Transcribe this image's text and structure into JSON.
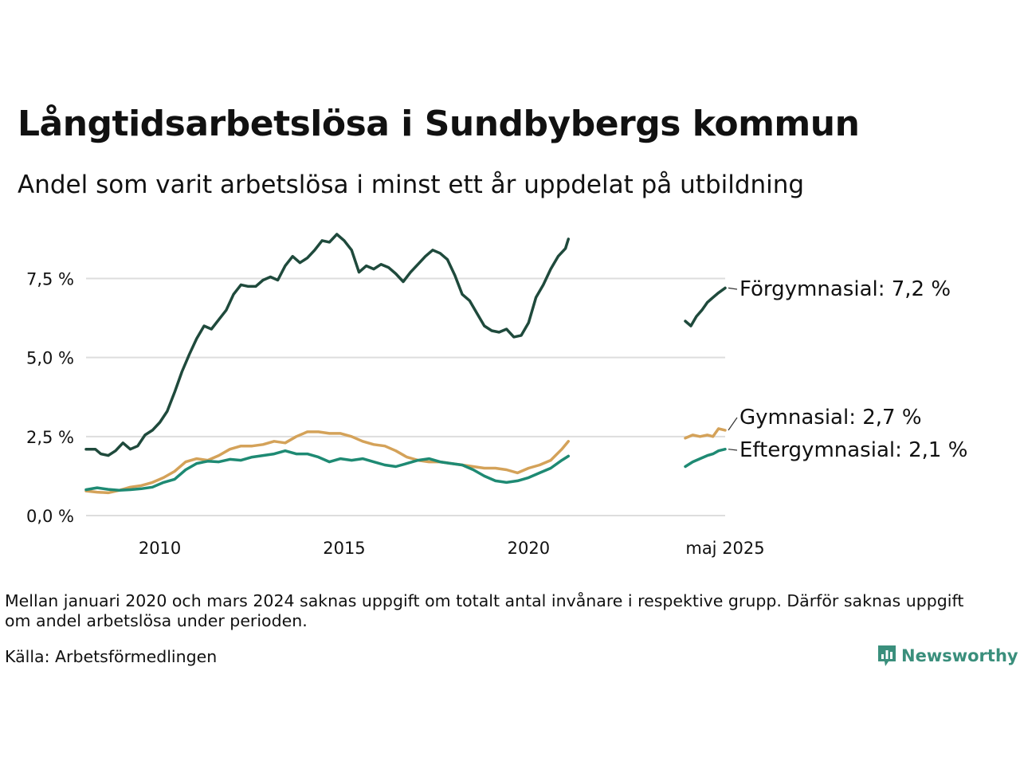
{
  "header": {
    "title": "Långtidsarbetslösa i Sundbybergs kommun",
    "subtitle": "Andel som varit arbetslösa i minst ett år uppdelat på utbildning"
  },
  "footer": {
    "note": "Mellan januari 2020 och mars 2024 saknas uppgift om totalt antal invånare i respektive grupp. Därför saknas uppgift om andel arbetslösa under perioden.",
    "source": "Källa: Arbetsförmedlingen",
    "brand": "Newsworthy"
  },
  "colors": {
    "Förgymnasial": "#1f4a3c",
    "Gymnasial": "#d4a259",
    "Eftergymnasial": "#1e8a73",
    "grid": "#dddddd",
    "brand": "#3a8f7c"
  },
  "icons": {
    "brand_logo": "bar-chart-logo-icon"
  },
  "chart_data": {
    "type": "line",
    "y_ticks": [
      "0,0 %",
      "2,5 %",
      "5,0 %",
      "7,5 %"
    ],
    "y_tick_values": [
      0,
      2.5,
      5,
      7.5
    ],
    "x_ticks": [
      "2010",
      "2015",
      "2020",
      "maj 2025"
    ],
    "x_tick_values": [
      2010.0,
      2015.0,
      2020.0,
      2025.33
    ],
    "xlim": [
      2008.0,
      2025.33
    ],
    "ylim": [
      0,
      9.0
    ],
    "grid": "horizontal",
    "legend": "end-of-line labels",
    "series": [
      {
        "name": "Förgymnasial",
        "end_label": "Förgymnasial: 7,2 %",
        "color": "#1f4a3c",
        "points": [
          [
            2008.0,
            2.1
          ],
          [
            2008.25,
            2.1
          ],
          [
            2008.4,
            1.95
          ],
          [
            2008.6,
            1.9
          ],
          [
            2008.8,
            2.05
          ],
          [
            2009.0,
            2.3
          ],
          [
            2009.2,
            2.1
          ],
          [
            2009.4,
            2.2
          ],
          [
            2009.6,
            2.55
          ],
          [
            2009.8,
            2.7
          ],
          [
            2010.0,
            2.95
          ],
          [
            2010.2,
            3.3
          ],
          [
            2010.4,
            3.9
          ],
          [
            2010.6,
            4.55
          ],
          [
            2010.8,
            5.1
          ],
          [
            2011.0,
            5.6
          ],
          [
            2011.2,
            6.0
          ],
          [
            2011.4,
            5.9
          ],
          [
            2011.6,
            6.2
          ],
          [
            2011.8,
            6.5
          ],
          [
            2012.0,
            7.0
          ],
          [
            2012.2,
            7.3
          ],
          [
            2012.4,
            7.25
          ],
          [
            2012.6,
            7.25
          ],
          [
            2012.8,
            7.45
          ],
          [
            2013.0,
            7.55
          ],
          [
            2013.2,
            7.45
          ],
          [
            2013.4,
            7.9
          ],
          [
            2013.6,
            8.2
          ],
          [
            2013.8,
            8.0
          ],
          [
            2014.0,
            8.15
          ],
          [
            2014.2,
            8.4
          ],
          [
            2014.4,
            8.7
          ],
          [
            2014.6,
            8.65
          ],
          [
            2014.8,
            8.9
          ],
          [
            2015.0,
            8.7
          ],
          [
            2015.2,
            8.4
          ],
          [
            2015.4,
            7.7
          ],
          [
            2015.6,
            7.9
          ],
          [
            2015.8,
            7.8
          ],
          [
            2016.0,
            7.95
          ],
          [
            2016.2,
            7.85
          ],
          [
            2016.4,
            7.65
          ],
          [
            2016.6,
            7.4
          ],
          [
            2016.8,
            7.7
          ],
          [
            2017.0,
            7.95
          ],
          [
            2017.2,
            8.2
          ],
          [
            2017.4,
            8.4
          ],
          [
            2017.6,
            8.3
          ],
          [
            2017.8,
            8.1
          ],
          [
            2018.0,
            7.6
          ],
          [
            2018.2,
            7.0
          ],
          [
            2018.4,
            6.8
          ],
          [
            2018.6,
            6.4
          ],
          [
            2018.8,
            6.0
          ],
          [
            2019.0,
            5.85
          ],
          [
            2019.2,
            5.8
          ],
          [
            2019.4,
            5.9
          ],
          [
            2019.6,
            5.65
          ],
          [
            2019.8,
            5.7
          ],
          [
            2020.0,
            6.1
          ],
          [
            2020.2,
            6.9
          ],
          [
            2020.4,
            7.3
          ],
          [
            2020.6,
            7.8
          ],
          [
            2020.8,
            8.2
          ],
          [
            2021.0,
            8.45
          ],
          [
            2021.08,
            8.75
          ]
        ]
      },
      {
        "name": "Gymnasial",
        "end_label": "Gymnasial: 2,7 %",
        "color": "#d4a259",
        "points": [
          [
            2008.0,
            0.78
          ],
          [
            2008.3,
            0.74
          ],
          [
            2008.6,
            0.72
          ],
          [
            2008.9,
            0.8
          ],
          [
            2009.2,
            0.9
          ],
          [
            2009.5,
            0.95
          ],
          [
            2009.8,
            1.05
          ],
          [
            2010.1,
            1.2
          ],
          [
            2010.4,
            1.4
          ],
          [
            2010.7,
            1.7
          ],
          [
            2011.0,
            1.8
          ],
          [
            2011.3,
            1.75
          ],
          [
            2011.6,
            1.9
          ],
          [
            2011.9,
            2.1
          ],
          [
            2012.2,
            2.2
          ],
          [
            2012.5,
            2.2
          ],
          [
            2012.8,
            2.25
          ],
          [
            2013.1,
            2.35
          ],
          [
            2013.4,
            2.3
          ],
          [
            2013.7,
            2.5
          ],
          [
            2014.0,
            2.65
          ],
          [
            2014.3,
            2.65
          ],
          [
            2014.6,
            2.6
          ],
          [
            2014.9,
            2.6
          ],
          [
            2015.2,
            2.5
          ],
          [
            2015.5,
            2.35
          ],
          [
            2015.8,
            2.25
          ],
          [
            2016.1,
            2.2
          ],
          [
            2016.4,
            2.05
          ],
          [
            2016.7,
            1.85
          ],
          [
            2017.0,
            1.75
          ],
          [
            2017.3,
            1.7
          ],
          [
            2017.6,
            1.7
          ],
          [
            2017.9,
            1.65
          ],
          [
            2018.2,
            1.6
          ],
          [
            2018.5,
            1.55
          ],
          [
            2018.8,
            1.5
          ],
          [
            2019.1,
            1.5
          ],
          [
            2019.4,
            1.45
          ],
          [
            2019.7,
            1.35
          ],
          [
            2020.0,
            1.5
          ],
          [
            2020.3,
            1.6
          ],
          [
            2020.6,
            1.75
          ],
          [
            2020.9,
            2.1
          ],
          [
            2021.08,
            2.35
          ]
        ]
      },
      {
        "name": "Eftergymnasial",
        "end_label": "Eftergymnasial: 2,1 %",
        "color": "#1e8a73",
        "points": [
          [
            2008.0,
            0.82
          ],
          [
            2008.3,
            0.88
          ],
          [
            2008.6,
            0.83
          ],
          [
            2008.9,
            0.8
          ],
          [
            2009.2,
            0.82
          ],
          [
            2009.5,
            0.85
          ],
          [
            2009.8,
            0.9
          ],
          [
            2010.1,
            1.05
          ],
          [
            2010.4,
            1.15
          ],
          [
            2010.7,
            1.45
          ],
          [
            2011.0,
            1.65
          ],
          [
            2011.3,
            1.72
          ],
          [
            2011.6,
            1.7
          ],
          [
            2011.9,
            1.78
          ],
          [
            2012.2,
            1.75
          ],
          [
            2012.5,
            1.85
          ],
          [
            2012.8,
            1.9
          ],
          [
            2013.1,
            1.95
          ],
          [
            2013.4,
            2.05
          ],
          [
            2013.7,
            1.95
          ],
          [
            2014.0,
            1.95
          ],
          [
            2014.3,
            1.85
          ],
          [
            2014.6,
            1.7
          ],
          [
            2014.9,
            1.8
          ],
          [
            2015.2,
            1.75
          ],
          [
            2015.5,
            1.8
          ],
          [
            2015.8,
            1.7
          ],
          [
            2016.1,
            1.6
          ],
          [
            2016.4,
            1.55
          ],
          [
            2016.7,
            1.65
          ],
          [
            2017.0,
            1.75
          ],
          [
            2017.3,
            1.8
          ],
          [
            2017.6,
            1.7
          ],
          [
            2017.9,
            1.65
          ],
          [
            2018.2,
            1.6
          ],
          [
            2018.5,
            1.45
          ],
          [
            2018.8,
            1.25
          ],
          [
            2019.1,
            1.1
          ],
          [
            2019.4,
            1.05
          ],
          [
            2019.7,
            1.1
          ],
          [
            2020.0,
            1.2
          ],
          [
            2020.3,
            1.35
          ],
          [
            2020.6,
            1.5
          ],
          [
            2020.9,
            1.75
          ],
          [
            2021.08,
            1.88
          ]
        ]
      },
      {
        "name": "Förgymnasial",
        "color": "#1f4a3c",
        "points": [
          [
            2024.25,
            6.15
          ],
          [
            2024.4,
            6.0
          ],
          [
            2024.55,
            6.3
          ],
          [
            2024.7,
            6.5
          ],
          [
            2024.85,
            6.75
          ],
          [
            2025.0,
            6.9
          ],
          [
            2025.15,
            7.05
          ],
          [
            2025.33,
            7.2
          ]
        ]
      },
      {
        "name": "Gymnasial",
        "color": "#d4a259",
        "points": [
          [
            2024.25,
            2.45
          ],
          [
            2024.45,
            2.55
          ],
          [
            2024.65,
            2.5
          ],
          [
            2024.85,
            2.55
          ],
          [
            2025.0,
            2.5
          ],
          [
            2025.15,
            2.75
          ],
          [
            2025.33,
            2.7
          ]
        ]
      },
      {
        "name": "Eftergymnasial",
        "color": "#1e8a73",
        "points": [
          [
            2024.25,
            1.55
          ],
          [
            2024.45,
            1.7
          ],
          [
            2024.65,
            1.8
          ],
          [
            2024.85,
            1.9
          ],
          [
            2025.0,
            1.95
          ],
          [
            2025.15,
            2.05
          ],
          [
            2025.33,
            2.1
          ]
        ]
      }
    ]
  }
}
